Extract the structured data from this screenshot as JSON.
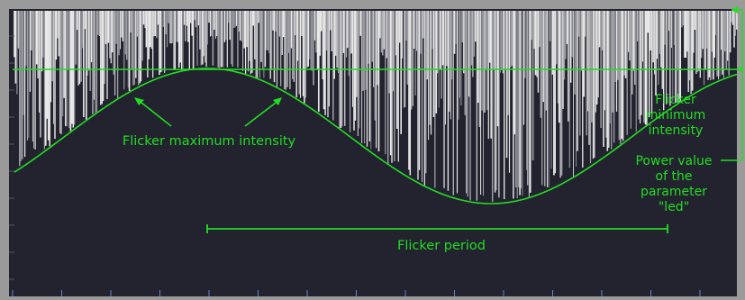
{
  "colors": {
    "frame": "#9a9a9a",
    "plot_background": "#23232f",
    "bars": "#e8e8e8",
    "bars_shade": "#9c9ca4",
    "annotation": "#22dd22",
    "axis_ticks": "#5a8ac8"
  },
  "labels": {
    "max_intensity": "Flicker maximum intensity",
    "min_intensity": [
      "Flicker",
      "minimum",
      "intensity"
    ],
    "power_value": [
      "Power value",
      "of the",
      "parameter",
      "\"led\""
    ],
    "period": "Flicker period"
  },
  "chart_data": {
    "type": "bar",
    "description_of_marks": "dense random vertical flicker bars hanging from the top, bounded below by a sinusoidal envelope",
    "envelope": {
      "shape": "sine",
      "cycles_visible": 1.6,
      "peaks_at_fraction_of_width": [
        0.268,
        0.898
      ],
      "trough_at_fraction_of_width": [
        0.583
      ]
    },
    "threshold_line": "horizontal line marking the flicker minimum intensity level"
  }
}
